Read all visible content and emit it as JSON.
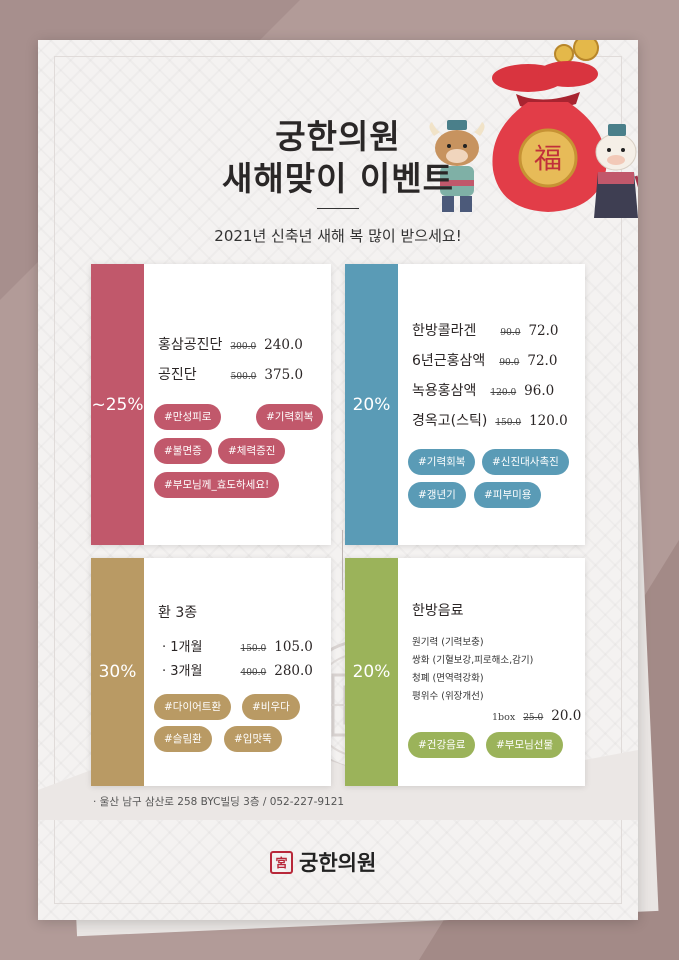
{
  "header": {
    "title_line1": "궁한의원",
    "title_line2": "새해맞이 이벤트",
    "subtitle": "2021년 신축년 새해 복 많이 받으세요!",
    "lucky_bag_character": "福"
  },
  "cards": {
    "red": {
      "discount": "~25%",
      "items": [
        {
          "name": "홍삼공진단",
          "original": "300.0",
          "price": "240.0"
        },
        {
          "name": "공진단",
          "original": "500.0",
          "price": "375.0"
        }
      ],
      "tags": [
        "#만성피로",
        "#기력회복",
        "#불면증",
        "#체력증진",
        "#부모님께_효도하세요!"
      ]
    },
    "blue": {
      "discount": "20%",
      "items": [
        {
          "name": "한방콜라겐",
          "original": "90.0",
          "price": "72.0"
        },
        {
          "name": "6년근홍삼액",
          "original": "90.0",
          "price": "72.0"
        },
        {
          "name": "녹용홍삼액",
          "original": "120.0",
          "price": "96.0"
        },
        {
          "name": "경옥고(스틱)",
          "original": "150.0",
          "price": "120.0"
        }
      ],
      "tags": [
        "#기력회복",
        "#신진대사촉진",
        "#갱년기",
        "#피부미용"
      ]
    },
    "gold": {
      "discount": "30%",
      "heading": "환 3종",
      "items": [
        {
          "name": "· 1개월",
          "original": "150.0",
          "price": "105.0"
        },
        {
          "name": "· 3개월",
          "original": "400.0",
          "price": "280.0"
        }
      ],
      "tags": [
        "#다이어트환",
        "#비우다",
        "#슬림환",
        "#입맛뚝"
      ]
    },
    "green": {
      "discount": "20%",
      "heading": "한방음료",
      "lines": [
        "원기력 (기력보충)",
        "쌍화 (기혈보강,피로해소,감기)",
        "청폐 (면역력강화)",
        "평위수 (위장개선)"
      ],
      "bundle": {
        "unit": "1box",
        "original": "25.0",
        "price": "20.0"
      },
      "tags": [
        "#건강음료",
        "#부모님선물"
      ]
    }
  },
  "footer": {
    "address": "· 울산 남구 삼산로 258 BYC빌딩 3층 / 052-227-9121",
    "logo_seal": "宮",
    "logo_text": "궁한의원"
  },
  "colors": {
    "red": "#c1586b",
    "blue": "#5a9bb6",
    "gold": "#b99a64",
    "green": "#9bb35a",
    "background": "#b29b98"
  }
}
